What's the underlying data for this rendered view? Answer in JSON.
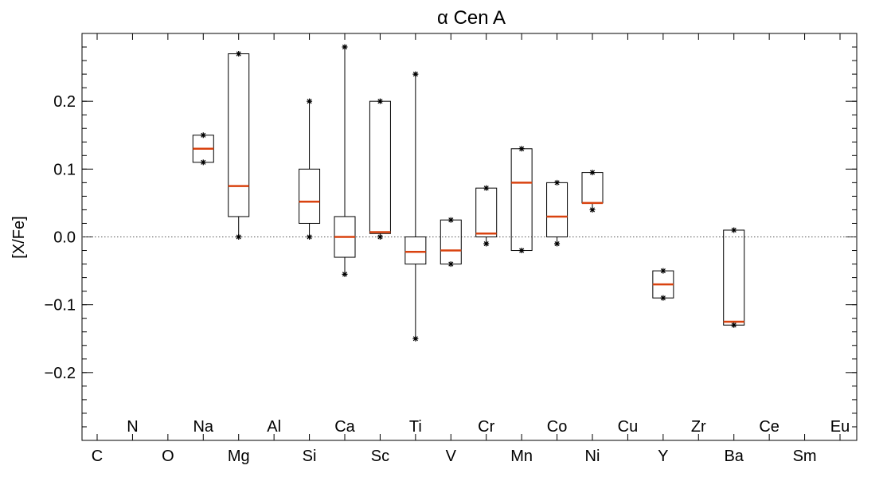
{
  "chart_data": {
    "type": "box",
    "title": "α Cen A",
    "ylabel": "[X/Fe]",
    "xlabel": "",
    "ylim": [
      -0.3,
      0.3
    ],
    "yticks": [
      "0.2",
      "0.1",
      "0.0",
      "−0.1",
      "−0.2"
    ],
    "ytick_values": [
      0.2,
      0.1,
      0.0,
      -0.1,
      -0.2
    ],
    "reference_line": {
      "y": 0.0,
      "style": "dotted"
    },
    "median_color": "#d9420f",
    "elements": [
      {
        "label": "C",
        "row": "bottom"
      },
      {
        "label": "N",
        "row": "top"
      },
      {
        "label": "O",
        "row": "bottom"
      },
      {
        "label": "Na",
        "row": "top"
      },
      {
        "label": "Mg",
        "row": "bottom"
      },
      {
        "label": "Al",
        "row": "top"
      },
      {
        "label": "Si",
        "row": "bottom"
      },
      {
        "label": "Ca",
        "row": "top"
      },
      {
        "label": "Sc",
        "row": "bottom"
      },
      {
        "label": "Ti",
        "row": "top"
      },
      {
        "label": "V",
        "row": "bottom"
      },
      {
        "label": "Cr",
        "row": "top"
      },
      {
        "label": "Mn",
        "row": "bottom"
      },
      {
        "label": "Co",
        "row": "top"
      },
      {
        "label": "Ni",
        "row": "bottom"
      },
      {
        "label": "Cu",
        "row": "top"
      },
      {
        "label": "Y",
        "row": "bottom"
      },
      {
        "label": "Zr",
        "row": "top"
      },
      {
        "label": "Ba",
        "row": "bottom"
      },
      {
        "label": "Ce",
        "row": "top"
      },
      {
        "label": "Sm",
        "row": "bottom"
      },
      {
        "label": "Eu",
        "row": "top"
      }
    ],
    "boxes": [
      {
        "element": "Na",
        "min": 0.11,
        "q1": 0.11,
        "median": 0.13,
        "q3": 0.15,
        "max": 0.15
      },
      {
        "element": "Mg",
        "min": 0.0,
        "q1": 0.03,
        "median": 0.075,
        "q3": 0.27,
        "max": 0.27
      },
      {
        "element": "Si",
        "min": 0.0,
        "q1": 0.02,
        "median": 0.052,
        "q3": 0.1,
        "max": 0.2
      },
      {
        "element": "Ca",
        "min": -0.055,
        "q1": -0.03,
        "median": 0.0,
        "q3": 0.03,
        "max": 0.28
      },
      {
        "element": "Sc",
        "min": 0.0,
        "q1": 0.005,
        "median": 0.007,
        "q3": 0.2,
        "max": 0.2
      },
      {
        "element": "Ti",
        "min": -0.15,
        "q1": -0.04,
        "median": -0.022,
        "q3": 0.0,
        "max": 0.24
      },
      {
        "element": "V",
        "min": -0.04,
        "q1": -0.04,
        "median": -0.02,
        "q3": 0.025,
        "max": 0.025
      },
      {
        "element": "Cr",
        "min": -0.01,
        "q1": 0.0,
        "median": 0.005,
        "q3": 0.072,
        "max": 0.072
      },
      {
        "element": "Mn",
        "min": -0.02,
        "q1": -0.02,
        "median": 0.08,
        "q3": 0.13,
        "max": 0.13
      },
      {
        "element": "Co",
        "min": -0.01,
        "q1": 0.0,
        "median": 0.03,
        "q3": 0.08,
        "max": 0.08
      },
      {
        "element": "Ni",
        "min": 0.04,
        "q1": 0.05,
        "median": 0.05,
        "q3": 0.095,
        "max": 0.095
      },
      {
        "element": "Y",
        "min": -0.09,
        "q1": -0.09,
        "median": -0.07,
        "q3": -0.05,
        "max": -0.05
      },
      {
        "element": "Ba",
        "min": -0.13,
        "q1": -0.13,
        "median": -0.125,
        "q3": 0.01,
        "max": 0.01
      }
    ]
  }
}
